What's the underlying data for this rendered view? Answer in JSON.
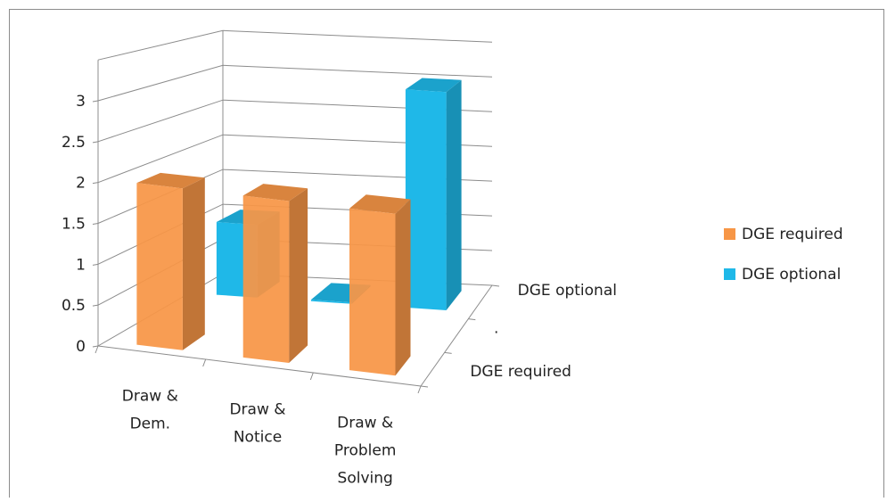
{
  "chart_data": {
    "type": "bar",
    "variant": "3d-column",
    "categories": [
      "Draw & Dem.",
      "Draw & Notice",
      "Draw & Problem Solving"
    ],
    "category_lines": [
      [
        "Draw &",
        "Dem."
      ],
      [
        "Draw &",
        "Notice"
      ],
      [
        "Draw &",
        "Problem",
        "Solving"
      ]
    ],
    "depth_labels": [
      "DGE required",
      ".",
      "DGE optional"
    ],
    "series": [
      {
        "name": "DGE required",
        "values": [
          2,
          2,
          2
        ],
        "color": "#F79646"
      },
      {
        "name": "DGE optional",
        "values": [
          1,
          0,
          3
        ],
        "color": "#1FB8E8"
      }
    ],
    "y_ticks": [
      "0",
      "0.5",
      "1",
      "1.5",
      "2",
      "2.5",
      "3"
    ],
    "ylim": [
      0,
      3
    ],
    "grid": true,
    "legend_position": "right"
  }
}
